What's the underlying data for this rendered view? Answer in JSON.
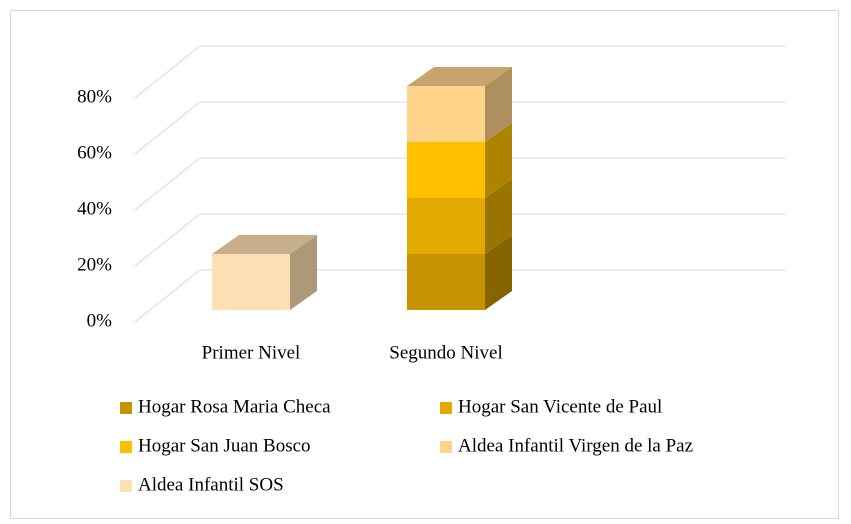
{
  "chart_data": {
    "type": "bar3d_stacked",
    "categories": [
      "Primer Nivel",
      "Segundo Nivel"
    ],
    "series": [
      {
        "name": "Hogar Rosa Maria Checa",
        "color": "#c59300",
        "values": [
          0,
          20
        ]
      },
      {
        "name": "Hogar San Vicente de Paul",
        "color": "#e2aa00",
        "values": [
          0,
          20
        ]
      },
      {
        "name": "Hogar San Juan Bosco",
        "color": "#ffc000",
        "values": [
          0,
          20
        ]
      },
      {
        "name": "Aldea Infantil Virgen de la Paz",
        "color": "#ffd48a",
        "values": [
          0,
          20
        ]
      },
      {
        "name": "Aldea Infantil SOS",
        "color": "#ffdfb4",
        "values": [
          20,
          0
        ]
      }
    ],
    "ylim": [
      0,
      80
    ],
    "yticks": [
      {
        "value": 0,
        "label": "0%"
      },
      {
        "value": 20,
        "label": "20%"
      },
      {
        "value": 40,
        "label": "40%"
      },
      {
        "value": 60,
        "label": "60%"
      },
      {
        "value": 80,
        "label": "80%"
      }
    ],
    "grid": true,
    "legend": "bottom"
  }
}
